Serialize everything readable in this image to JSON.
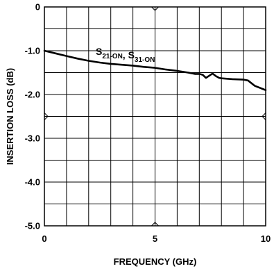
{
  "chart_data": {
    "type": "line",
    "title": "",
    "xlabel": "FREQUENCY (GHz)",
    "ylabel": "INSERTION LOSS (dB)",
    "xlim": [
      0,
      10
    ],
    "ylim": [
      -5.0,
      0
    ],
    "x_major_ticks": [
      0,
      5,
      10
    ],
    "x_tick_labels": [
      "0",
      "5",
      "10"
    ],
    "y_major_ticks": [
      0,
      -1.0,
      -2.0,
      -3.0,
      -4.0,
      -5.0
    ],
    "y_tick_labels": [
      "0",
      "-1.0",
      "-2.0",
      "-3.0",
      "-4.0",
      "-5.0"
    ],
    "x_grid_step": 1,
    "y_grid_step": 0.5,
    "grid": true,
    "legend": "none",
    "annotation": {
      "parts": [
        {
          "text": "S",
          "sub": "21-ON"
        },
        {
          "text": ", S",
          "sub": "31-ON"
        }
      ]
    },
    "series": [
      {
        "color": "#000000",
        "x": [
          0,
          0.5,
          1.0,
          1.5,
          2.0,
          2.5,
          3.0,
          3.5,
          4.0,
          4.5,
          5.0,
          5.5,
          6.0,
          6.5,
          6.8,
          7.0,
          7.15,
          7.3,
          7.45,
          7.6,
          7.75,
          7.9,
          8.0,
          8.5,
          9.0,
          9.2,
          9.5,
          10.0
        ],
        "y": [
          -1.0,
          -1.06,
          -1.12,
          -1.18,
          -1.23,
          -1.27,
          -1.3,
          -1.32,
          -1.34,
          -1.37,
          -1.39,
          -1.43,
          -1.46,
          -1.5,
          -1.53,
          -1.53,
          -1.55,
          -1.62,
          -1.57,
          -1.52,
          -1.58,
          -1.62,
          -1.63,
          -1.65,
          -1.66,
          -1.68,
          -1.8,
          -1.9
        ]
      }
    ]
  }
}
